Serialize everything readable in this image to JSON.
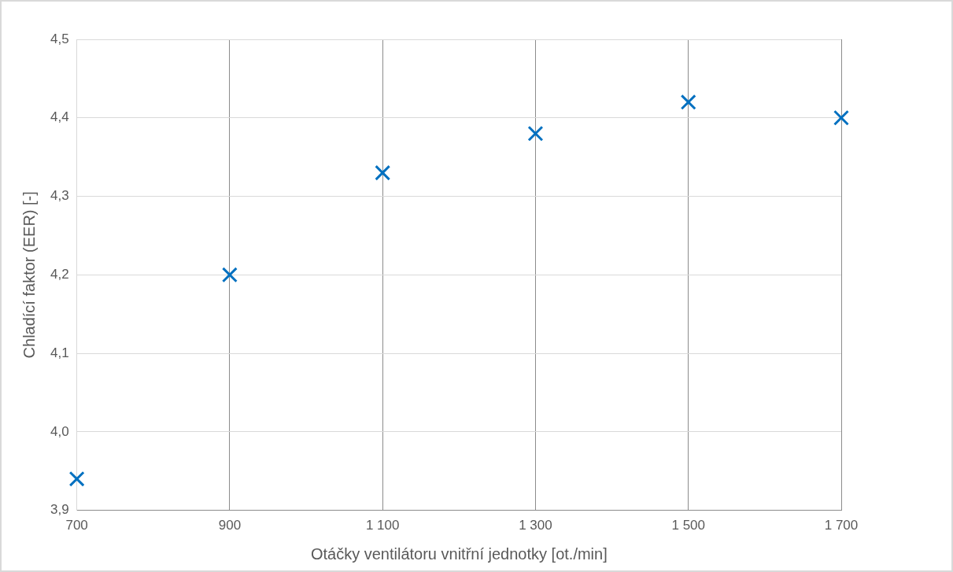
{
  "chart_data": {
    "type": "scatter",
    "xlabel": "Otáčky ventilátoru vnitřní jednotky [ot./min]",
    "ylabel": "Chladící faktor (EER) [-]",
    "x": [
      700,
      900,
      1100,
      1300,
      1500,
      1700
    ],
    "series": [
      {
        "color": "#0070c0",
        "values": [
          3.94,
          4.2,
          4.33,
          4.38,
          4.42,
          4.4
        ]
      }
    ],
    "xlim": [
      700,
      1700
    ],
    "xticks": [
      {
        "value": 700,
        "label": "700"
      },
      {
        "value": 900,
        "label": "900"
      },
      {
        "value": 1100,
        "label": "1 100"
      },
      {
        "value": 1300,
        "label": "1 300"
      },
      {
        "value": 1500,
        "label": "1 500"
      },
      {
        "value": 1700,
        "label": "1 700"
      }
    ],
    "ylim": [
      3.9,
      4.5
    ],
    "yticks": [
      {
        "value": 3.9,
        "label": "3,9"
      },
      {
        "value": 4,
        "label": "4,0"
      },
      {
        "value": 4.1,
        "label": "4,1"
      },
      {
        "value": 4.2,
        "label": "4,2"
      },
      {
        "value": 4.3,
        "label": "4,3"
      },
      {
        "value": 4.4,
        "label": "4,4"
      },
      {
        "value": 4.5,
        "label": "4,5"
      }
    ],
    "grid": true,
    "marker": "cross",
    "legend": false
  }
}
